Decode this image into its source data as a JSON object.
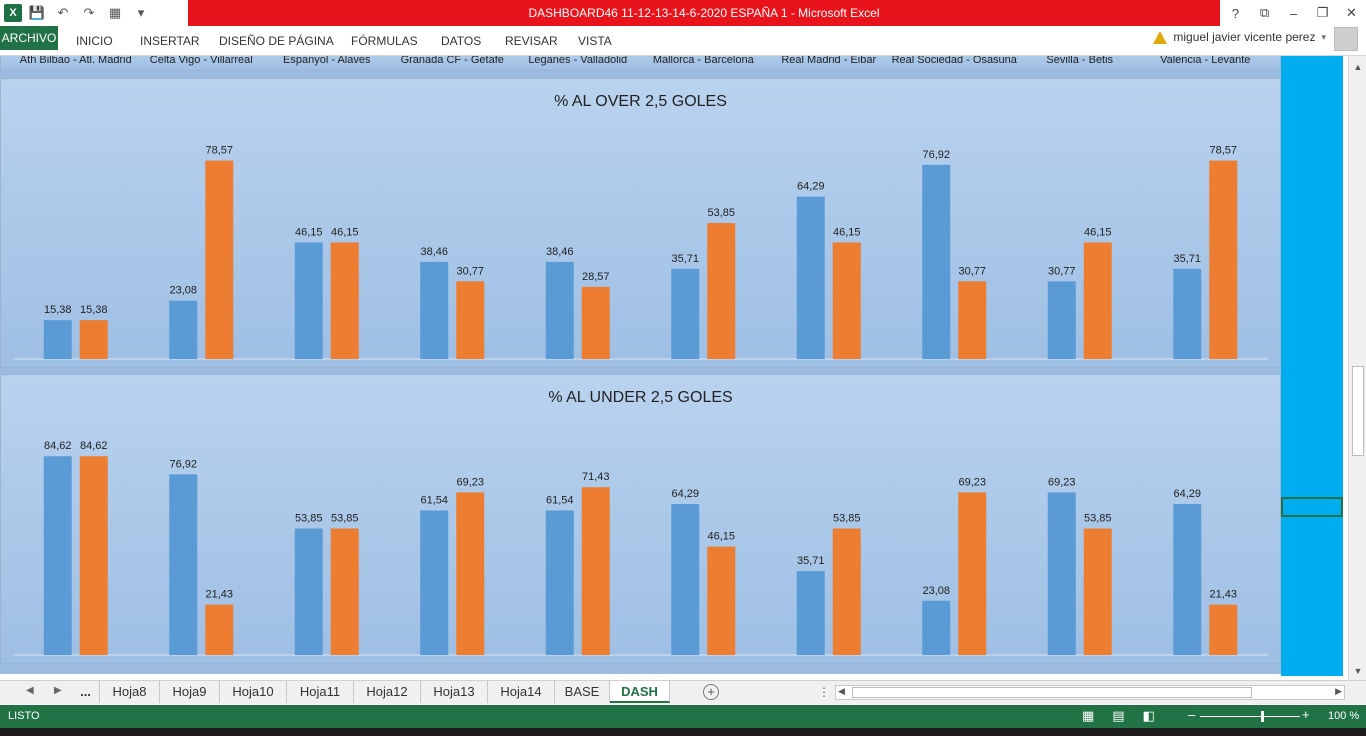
{
  "window": {
    "title": "DASHBOARD46 11-12-13-14-6-2020 ESPAÑA 1 -  Microsoft Excel",
    "controls": [
      "?",
      "⧉",
      "–",
      "❐",
      "✕"
    ]
  },
  "quick_access": {
    "icons": [
      "excel-logo-icon",
      "save-icon",
      "undo-icon",
      "redo-icon",
      "format-painter-icon",
      "customize-icon"
    ]
  },
  "ribbon": {
    "tabs": [
      "ARCHIVO",
      "INICIO",
      "INSERTAR",
      "DISEÑO DE PÁGINA",
      "FÓRMULAS",
      "DATOS",
      "REVISAR",
      "VISTA"
    ],
    "user": "miguel javier vicente perez"
  },
  "prev_chart": {
    "categories": [
      "Ath Bilbao - Atl. Madrid",
      "Celta Vigo - Villarreal",
      "Espanyol - Alaves",
      "Granada CF - Getafe",
      "Leganes - Valladolid",
      "Mallorca - Barcelona",
      "Real Madrid - Eibar",
      "Real Sociedad - Osasuna",
      "Sevilla - Betis",
      "Valencia - Levante"
    ]
  },
  "colors": {
    "home_series": "#5b9bd5",
    "away_series": "#ed7d31",
    "accent_strip": "#00aeef",
    "title_bar": "#e9141b",
    "excel_green": "#217346"
  },
  "chart_data": [
    {
      "type": "bar",
      "title": "% AL OVER 2,5 GOLES",
      "categories": [
        "Ath Bilbao - Atl. Madrid",
        "Celta Vigo - Villarreal",
        "Espanyol - Alaves",
        "Granada CF - Getafe",
        "Leganes - Valladolid",
        "Mallorca - Barcelona",
        "Real Madrid - Eibar",
        "Real Sociedad - Osasuna",
        "Sevilla - Betis",
        "Valencia - Levante"
      ],
      "series": [
        {
          "values": [
            15.38,
            23.08,
            46.15,
            38.46,
            38.46,
            35.71,
            64.29,
            76.92,
            30.77,
            35.71
          ],
          "labels": [
            "15,38",
            "23,08",
            "46,15",
            "38,46",
            "38,46",
            "35,71",
            "64,29",
            "76,92",
            "30,77",
            "35,71"
          ]
        },
        {
          "values": [
            15.38,
            78.57,
            46.15,
            30.77,
            28.57,
            53.85,
            46.15,
            30.77,
            46.15,
            78.57
          ],
          "labels": [
            "15,38",
            "78,57",
            "46,15",
            "30,77",
            "28,57",
            "53,85",
            "46,15",
            "30,77",
            "46,15",
            "78,57"
          ]
        }
      ],
      "ylim": [
        0,
        80
      ],
      "grid": false,
      "legend": "none"
    },
    {
      "type": "bar",
      "title": "% AL UNDER 2,5 GOLES",
      "categories": [
        "Ath Bilbao - Atl. Madrid",
        "Celta Vigo - Villarreal",
        "Espanyol - Alaves",
        "Granada CF - Getafe",
        "Leganes - Valladolid",
        "Mallorca - Barcelona",
        "Real Madrid - Eibar",
        "Real Sociedad - Osasuna",
        "Sevilla - Betis",
        "Valencia - Levante"
      ],
      "series": [
        {
          "values": [
            84.62,
            76.92,
            53.85,
            61.54,
            61.54,
            64.29,
            35.71,
            23.08,
            69.23,
            64.29
          ],
          "labels": [
            "84,62",
            "76,92",
            "53,85",
            "61,54",
            "61,54",
            "64,29",
            "35,71",
            "23,08",
            "69,23",
            "64,29"
          ]
        },
        {
          "values": [
            84.62,
            21.43,
            53.85,
            69.23,
            71.43,
            46.15,
            53.85,
            69.23,
            53.85,
            21.43
          ],
          "labels": [
            "84,62",
            "21,43",
            "53,85",
            "69,23",
            "71,43",
            "46,15",
            "53,85",
            "69,23",
            "53,85",
            "21,43"
          ]
        }
      ],
      "ylim": [
        0,
        86
      ],
      "grid": false,
      "legend": "none"
    }
  ],
  "sheet_tabs": {
    "overflow": "...",
    "tabs": [
      "Hoja8",
      "Hoja9",
      "Hoja10",
      "Hoja11",
      "Hoja12",
      "Hoja13",
      "Hoja14",
      "BASE",
      "DASH"
    ],
    "active": "DASH"
  },
  "status": {
    "ready": "LISTO",
    "zoom": "100 %",
    "zoom_level": 100
  }
}
